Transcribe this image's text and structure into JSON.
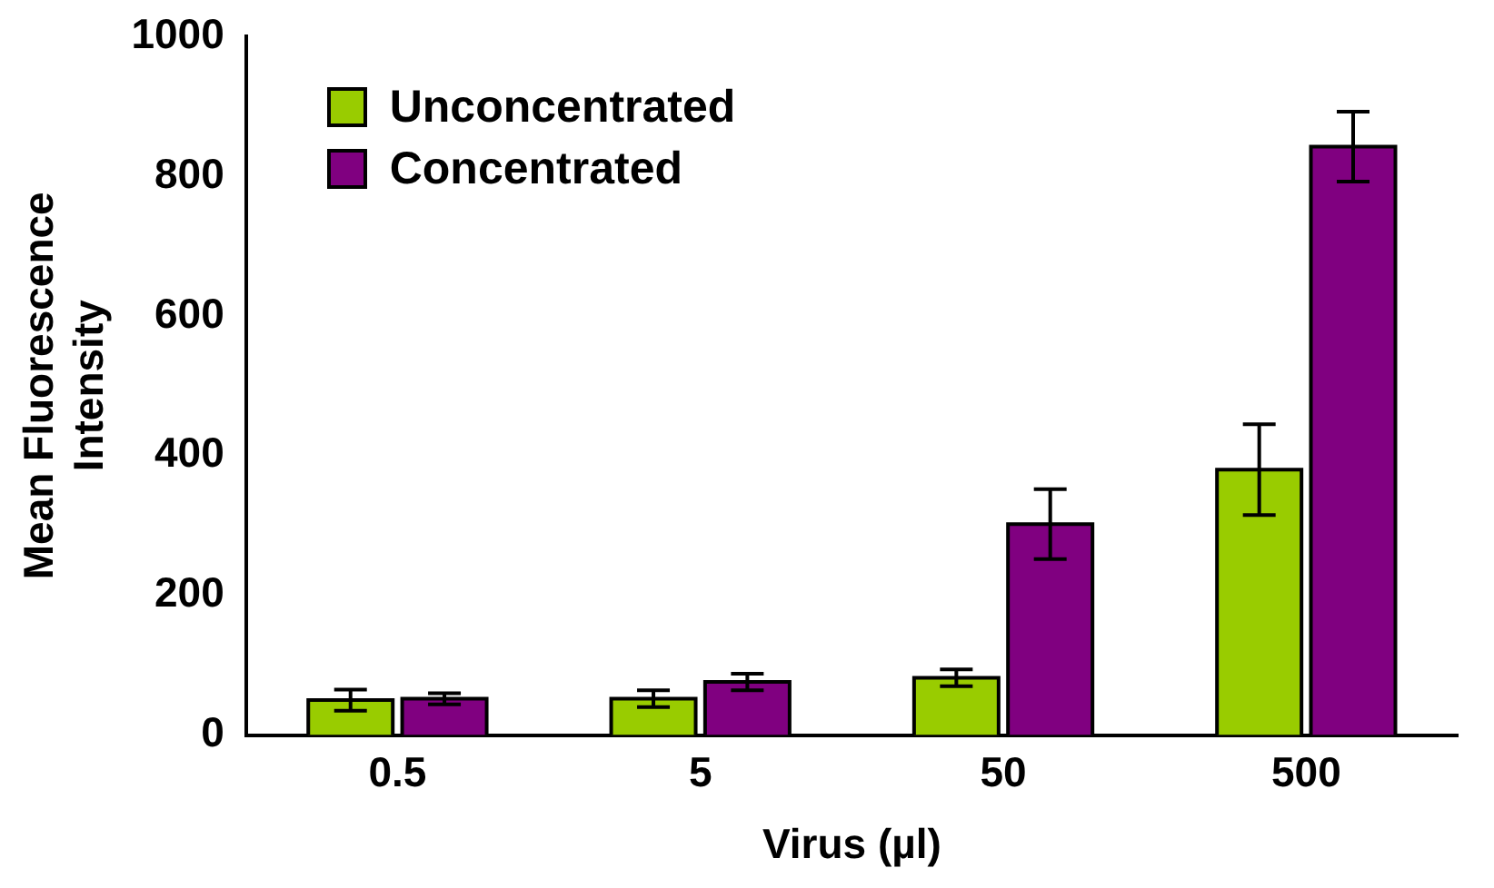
{
  "chart_data": {
    "type": "bar",
    "xlabel": "Virus (µl)",
    "ylabel": "Mean Fluorescence Intensity",
    "categories": [
      "0.5",
      "5",
      "50",
      "500"
    ],
    "series": [
      {
        "name": "Unconcentrated",
        "color": "#99cc00",
        "values": [
          50,
          52,
          82,
          380
        ],
        "errors": [
          15,
          12,
          12,
          65
        ]
      },
      {
        "name": "Concentrated",
        "color": "#800080",
        "values": [
          52,
          76,
          302,
          842
        ],
        "errors": [
          8,
          12,
          50,
          50
        ]
      }
    ],
    "ylim": [
      0,
      1000
    ],
    "yticks": [
      0,
      200,
      400,
      600,
      800,
      1000
    ],
    "grid": false,
    "legend": "top left"
  }
}
